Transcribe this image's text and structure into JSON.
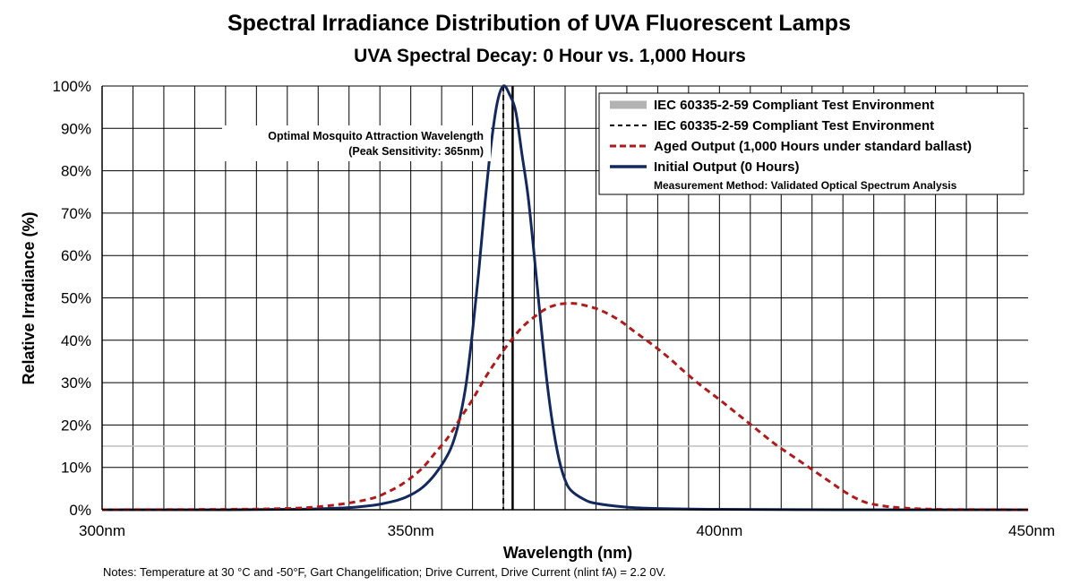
{
  "chart_data": {
    "type": "line",
    "title": "Spectral Irradiance Distribution of UVA  Fluorescent Lamps",
    "subtitle": "UVA Spectral Decay: 0 Hour vs. 1,000 Hours",
    "xlabel": "Wavelength (nm)",
    "ylabel": "Relative Irradiance (%)",
    "xlim": [
      300,
      450
    ],
    "ylim": [
      0,
      100
    ],
    "x_ticks": [
      {
        "value": 300,
        "label": "300nm"
      },
      {
        "value": 350,
        "label": "350nm"
      },
      {
        "value": 400,
        "label": "400nm"
      },
      {
        "value": 450,
        "label": "450nm"
      }
    ],
    "y_ticks": [
      {
        "value": 0,
        "label": "0%"
      },
      {
        "value": 10,
        "label": "10%"
      },
      {
        "value": 20,
        "label": "20%"
      },
      {
        "value": 30,
        "label": "30%"
      },
      {
        "value": 40,
        "label": "40%"
      },
      {
        "value": 50,
        "label": "50%"
      },
      {
        "value": 60,
        "label": "60%"
      },
      {
        "value": 70,
        "label": "70%"
      },
      {
        "value": 80,
        "label": "80%"
      },
      {
        "value": 90,
        "label": "90%"
      },
      {
        "value": 100,
        "label": "100%"
      }
    ],
    "x_grid_step": 5,
    "grid": true,
    "legend_position": "top-right",
    "legend": [
      {
        "label": "IEC 60335-2-59 Compliant Test Environment",
        "style": "gray-band",
        "color": "#b3b3b3"
      },
      {
        "label": "IEC 60335-2-59 Compliant Test Environment",
        "style": "black-dashed",
        "color": "#000000"
      },
      {
        "label": "Aged Output (1,000 Hours under standard ballast)",
        "style": "red-dashed",
        "color": "#b11a1a"
      },
      {
        "label": "Initial Output (0 Hours)",
        "style": "navy-solid",
        "color": "#13295e"
      }
    ],
    "legend_note": "Measurement Method: Validated Optical Spectrum Analysis",
    "reference_lines": [
      {
        "type": "horizontal",
        "y": 15,
        "color": "#bfbfbf"
      },
      {
        "type": "vertical",
        "x": 365,
        "style": "dashed",
        "color": "#000000"
      },
      {
        "type": "vertical",
        "x": 366.5,
        "style": "solid",
        "color": "#000000"
      }
    ],
    "annotation": [
      "Optimal Mosquito Attraction Wavelength",
      "(Peak Sensitivity: 365nm)"
    ],
    "series": [
      {
        "name": "Initial Output (0 Hours)",
        "color": "#13295e",
        "x": [
          300,
          320,
          330,
          335,
          340,
          343,
          345,
          348,
          350,
          352,
          354,
          356,
          357,
          358,
          359,
          360,
          361,
          362,
          363,
          364,
          365,
          366,
          367,
          368,
          369,
          370,
          371,
          372,
          373,
          374,
          375,
          376,
          378,
          380,
          385,
          390,
          400,
          420,
          450
        ],
        "y": [
          0,
          0,
          0.1,
          0.2,
          0.5,
          0.9,
          1.3,
          2.3,
          3.5,
          5.4,
          8.5,
          13,
          16.5,
          22,
          30,
          42,
          56,
          72,
          86,
          96,
          100,
          98,
          94,
          84,
          74,
          60,
          45,
          31,
          20,
          12,
          7,
          4.5,
          2.5,
          1.5,
          0.6,
          0.3,
          0.1,
          0,
          0
        ]
      },
      {
        "name": "Aged Output (1,000 Hours under standard ballast)",
        "color": "#b11a1a",
        "x": [
          300,
          320,
          330,
          335,
          340,
          344,
          346,
          348,
          350,
          352,
          354,
          356,
          358,
          360,
          362,
          364,
          366,
          368,
          370,
          372,
          374,
          376,
          377,
          378,
          380,
          382,
          384,
          386,
          388,
          390,
          392,
          394,
          396,
          398,
          400,
          403,
          406,
          409,
          412,
          415,
          418,
          420,
          422,
          424,
          427,
          430,
          435,
          440,
          450
        ],
        "y": [
          0,
          0.1,
          0.3,
          0.7,
          1.6,
          2.8,
          4,
          5.5,
          7.5,
          10,
          13.5,
          17,
          21.5,
          26,
          31,
          35.5,
          39.5,
          43,
          45.5,
          47.5,
          48.5,
          48.7,
          48.6,
          48.3,
          47.5,
          46.2,
          44.5,
          42.3,
          40.2,
          38,
          35.6,
          33,
          30.5,
          28.2,
          26,
          22.5,
          19,
          15.5,
          12.5,
          9.5,
          6.5,
          4.5,
          2.8,
          1.6,
          0.8,
          0.4,
          0.1,
          0.05,
          0
        ]
      }
    ]
  },
  "notes": "Notes: Temperature at 30 °C  and -50°F, Gart Changelification; Drive Current,  Drive Current (nlint fA) = 2.2 0V."
}
